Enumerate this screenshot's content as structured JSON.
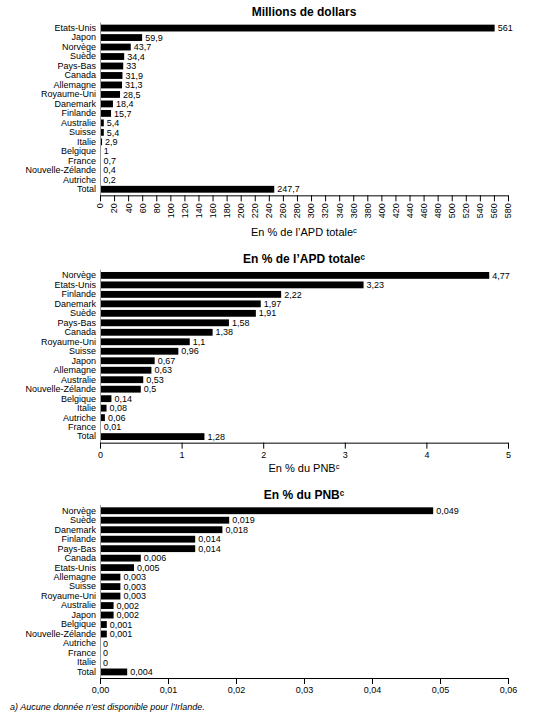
{
  "chart_data": [
    {
      "type": "bar",
      "orientation": "horizontal",
      "data_labels": true,
      "grid": false,
      "title": "Millions de dollars",
      "x_label": "En % de l’APD totaleᶜ",
      "color": "#000000",
      "categories": [
        "Etats-Unis",
        "Japon",
        "Norvège",
        "Suède",
        "Pays-Bas",
        "Canada",
        "Allemagne",
        "Royaume-Uni",
        "Danemark",
        "Finlande",
        "Australie",
        "Suisse",
        "Italie",
        "Belgique",
        "France",
        "Nouvelle-Zélande",
        "Autriche",
        "Total"
      ],
      "values": [
        561,
        59.9,
        43.7,
        34.4,
        33,
        31.9,
        31.3,
        28.5,
        18.4,
        15.7,
        5.4,
        5.4,
        2.9,
        1,
        0.7,
        0.4,
        0.2,
        247.7
      ],
      "value_labels": [
        "561",
        "59,9",
        "43,7",
        "34,4",
        "33",
        "31,9",
        "31,3",
        "28,5",
        "18,4",
        "15,7",
        "5,4",
        "5,4",
        "2,9",
        "1",
        "0,7",
        "0,4",
        "0,2",
        "247,7"
      ],
      "xlim": [
        0,
        580
      ],
      "xticks": [
        0,
        20,
        40,
        60,
        80,
        100,
        120,
        140,
        160,
        180,
        200,
        220,
        240,
        260,
        280,
        300,
        320,
        340,
        360,
        380,
        400,
        420,
        440,
        460,
        480,
        500,
        520,
        540,
        560,
        580
      ]
    },
    {
      "type": "bar",
      "orientation": "horizontal",
      "data_labels": true,
      "grid": false,
      "title": "En % de l’APD totaleᶜ",
      "x_label": "En % du PNBᶜ",
      "color": "#000000",
      "categories": [
        "Norvège",
        "Etats-Unis",
        "Finlande",
        "Danemark",
        "Suède",
        "Pays-Bas",
        "Canada",
        "Royaume-Uni",
        "Suisse",
        "Japon",
        "Allemagne",
        "Australie",
        "Nouvelle-Zélande",
        "Belgique",
        "Italie",
        "Autriche",
        "France",
        "Total"
      ],
      "values": [
        4.77,
        3.23,
        2.22,
        1.97,
        1.91,
        1.58,
        1.38,
        1.1,
        0.96,
        0.67,
        0.63,
        0.53,
        0.5,
        0.14,
        0.08,
        0.06,
        0.01,
        1.28
      ],
      "value_labels": [
        "4,77",
        "3,23",
        "2,22",
        "1,97",
        "1,91",
        "1,58",
        "1,38",
        "1,1",
        "0,96",
        "0,67",
        "0,63",
        "0,53",
        "0,5",
        "0,14",
        "0,08",
        "0,06",
        "0,01",
        "1,28"
      ],
      "xlim": [
        0,
        5
      ],
      "xticks": [
        0,
        1,
        2,
        3,
        4,
        5
      ]
    },
    {
      "type": "bar",
      "orientation": "horizontal",
      "data_labels": true,
      "grid": false,
      "title": "En % du PNBᶜ",
      "color": "#000000",
      "categories": [
        "Norvège",
        "Suède",
        "Danemark",
        "Finlande",
        "Pays-Bas",
        "Canada",
        "Etats-Unis",
        "Allemagne",
        "Suisse",
        "Royaume-Uni",
        "Australie",
        "Japon",
        "Belgique",
        "Nouvelle-Zélande",
        "Autriche",
        "France",
        "Italie",
        "Total"
      ],
      "values": [
        0.049,
        0.019,
        0.018,
        0.014,
        0.014,
        0.006,
        0.005,
        0.003,
        0.003,
        0.003,
        0.002,
        0.002,
        0.001,
        0.001,
        0,
        0,
        0,
        0.004
      ],
      "value_labels": [
        "0,049",
        "0,019",
        "0,018",
        "0,014",
        "0,014",
        "0,006",
        "0,005",
        "0,003",
        "0,003",
        "0,003",
        "0,002",
        "0,002",
        "0,001",
        "0,001",
        "0",
        "0",
        "0",
        "0,004"
      ],
      "xlim": [
        0,
        0.06
      ],
      "xticks": [
        {
          "value": 0,
          "label": "0,00"
        },
        {
          "value": 0.01,
          "label": "0,01"
        },
        {
          "value": 0.02,
          "label": "0,02"
        },
        {
          "value": 0.03,
          "label": "0,03"
        },
        {
          "value": 0.04,
          "label": "0,04"
        },
        {
          "value": 0.05,
          "label": "0,05"
        },
        {
          "value": 0.06,
          "label": "0,06"
        }
      ],
      "annotations": [
        "a)  Aucune donnée n’est disponible pour l’Irlande."
      ]
    }
  ]
}
